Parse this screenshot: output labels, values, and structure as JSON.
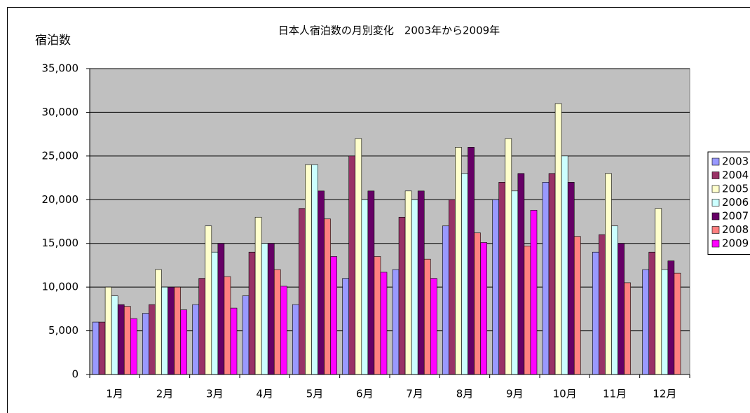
{
  "chart_data": {
    "type": "bar",
    "title": "日本人宿泊数の月別変化　2003年から2009年",
    "y_label": "宿泊数",
    "categories": [
      "1月",
      "2月",
      "3月",
      "4月",
      "5月",
      "6月",
      "7月",
      "8月",
      "9月",
      "10月",
      "11月",
      "12月"
    ],
    "series": [
      {
        "name": "2003",
        "color": "#9999ff",
        "values": [
          6000,
          7000,
          8000,
          9000,
          8000,
          11000,
          12000,
          17000,
          20000,
          22000,
          14000,
          12000
        ]
      },
      {
        "name": "2004",
        "color": "#993366",
        "values": [
          6000,
          8000,
          11000,
          14000,
          19000,
          25000,
          18000,
          20000,
          22000,
          23000,
          16000,
          14000
        ]
      },
      {
        "name": "2005",
        "color": "#ffffcc",
        "values": [
          10000,
          12000,
          17000,
          18000,
          24000,
          27000,
          21000,
          26000,
          27000,
          31000,
          23000,
          19000
        ]
      },
      {
        "name": "2006",
        "color": "#ccffff",
        "values": [
          9000,
          10000,
          14000,
          15000,
          24000,
          20000,
          20000,
          23000,
          21000,
          25000,
          17000,
          12000
        ]
      },
      {
        "name": "2007",
        "color": "#660066",
        "values": [
          8000,
          10000,
          15000,
          15000,
          21000,
          21000,
          21000,
          26000,
          23000,
          22000,
          15000,
          13000
        ]
      },
      {
        "name": "2008",
        "color": "#ff8080",
        "values": [
          7800,
          10000,
          11200,
          12000,
          17800,
          13500,
          13200,
          16200,
          14700,
          15800,
          10500,
          11600
        ]
      },
      {
        "name": "2009",
        "color": "#ff00ff",
        "values": [
          6400,
          7400,
          7600,
          10100,
          13500,
          11700,
          11000,
          15100,
          18800,
          null,
          null,
          null
        ]
      }
    ],
    "ylim": [
      0,
      35000
    ],
    "yticks": [
      0,
      {
        "value": 5000,
        "label": "5,000"
      },
      {
        "value": 10000,
        "label": "10,000"
      },
      {
        "value": 15000,
        "label": "15,000"
      },
      {
        "value": 20000,
        "label": "20,000"
      },
      {
        "value": 25000,
        "label": "25,000"
      },
      {
        "value": 30000,
        "label": "30,000"
      },
      {
        "value": 35000,
        "label": "35,000"
      }
    ],
    "grid": true,
    "legend": "right"
  }
}
